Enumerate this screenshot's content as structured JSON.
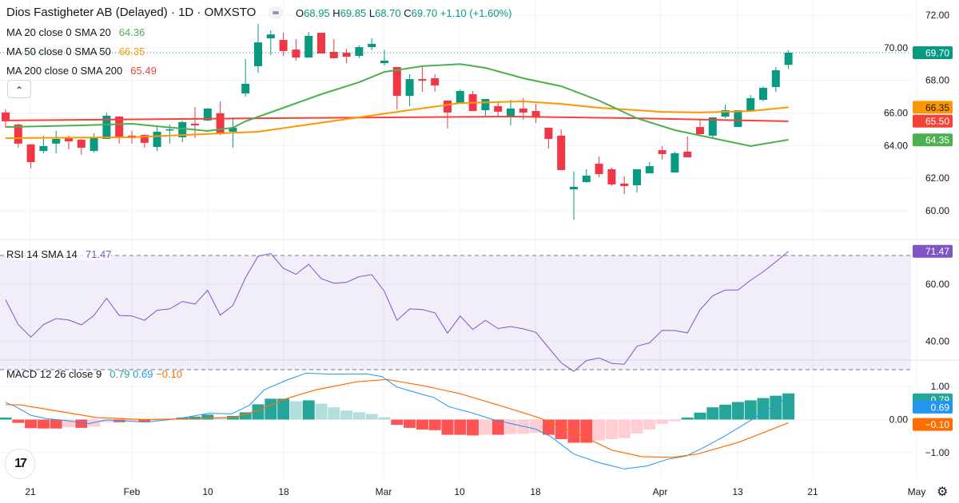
{
  "header": {
    "title": "Dios Fastigheter AB (Delayed) · 1D · OMXSTO",
    "ohlc": {
      "o_label": "O",
      "o": "68.95",
      "h_label": "H",
      "h": "69.85",
      "l_label": "L",
      "l": "68.70",
      "c_label": "C",
      "c": "69.70",
      "change": "+1.10 (+1.60%)"
    }
  },
  "legends": {
    "ma20": {
      "label": "MA 20 close 0 SMA 20",
      "value": "64.36",
      "color": "#4caf50"
    },
    "ma50": {
      "label": "MA 50 close 0 SMA 50",
      "value": "66.35",
      "color": "#ff9800"
    },
    "ma200": {
      "label": "MA 200 close 0 SMA 200",
      "value": "65.49",
      "color": "#f44336"
    },
    "rsi": {
      "label": "RSI 14 SMA 14",
      "value": "71.47",
      "color": "#7e57c2"
    },
    "macd": {
      "label": "MACD 12 26 close 9",
      "hist": "0.79",
      "macd": "0.69",
      "signal": "−0.10"
    }
  },
  "controls": {
    "collapse_icon": "chevron-up-icon",
    "collapse_glyph": "⌃",
    "logo_text": "17",
    "settings_icon": "gear-icon",
    "settings_glyph": "⚙"
  },
  "axes": {
    "price_ticks": [
      "72.00",
      "70.00",
      "68.00",
      "66.00",
      "64.00",
      "62.00",
      "60.00"
    ],
    "rsi_ticks": [
      "60.00",
      "40.00"
    ],
    "macd_ticks": [
      "1.00",
      "0.00",
      "−1.00"
    ],
    "time_ticks": [
      "21",
      "Feb",
      "10",
      "18",
      "Mar",
      "10",
      "18",
      "Apr",
      "13",
      "21",
      "May"
    ],
    "badges": {
      "close": {
        "text": "69.70",
        "color": "#089981"
      },
      "ma50": {
        "text": "66.35",
        "color": "#ff9800"
      },
      "ma200": {
        "text": "65.50",
        "color": "#f44336"
      },
      "ma20": {
        "text": "64.35",
        "color": "#4caf50"
      },
      "rsi": {
        "text": "71.47",
        "color": "#7e57c2"
      },
      "hist": {
        "text": "0.79",
        "color": "#26a69a"
      },
      "macd": {
        "text": "0.69",
        "color": "#2196f3"
      },
      "signal": {
        "text": "−0.10",
        "color": "#ff6d00"
      }
    }
  },
  "chart_data": {
    "type": "candlestick",
    "colors": {
      "up": "#089981",
      "down": "#f23645"
    },
    "price_range": [
      58.5,
      72.5
    ],
    "candles": [
      [
        66.03,
        66.22,
        65.1,
        65.49
      ],
      [
        65.29,
        65.35,
        63.87,
        64.12
      ],
      [
        64.07,
        64.1,
        62.6,
        62.99
      ],
      [
        63.67,
        64.61,
        63.53,
        63.97
      ],
      [
        64.12,
        64.9,
        63.53,
        64.41
      ],
      [
        64.51,
        64.61,
        63.77,
        64.26
      ],
      [
        64.36,
        64.4,
        63.43,
        63.87
      ],
      [
        63.67,
        64.75,
        63.58,
        64.51
      ],
      [
        64.41,
        66.03,
        64.41,
        65.83
      ],
      [
        65.78,
        65.8,
        64.12,
        64.51
      ],
      [
        64.61,
        64.9,
        64.12,
        64.46
      ],
      [
        64.65,
        64.7,
        63.87,
        64.17
      ],
      [
        63.92,
        65.19,
        63.67,
        64.85
      ],
      [
        64.95,
        65.29,
        64.12,
        65.0
      ],
      [
        64.51,
        65.54,
        64.21,
        65.44
      ],
      [
        65.34,
        66.37,
        64.46,
        65.24
      ],
      [
        65.54,
        66.3,
        65.5,
        66.27
      ],
      [
        65.98,
        66.71,
        64.65,
        64.7
      ],
      [
        64.85,
        65.73,
        63.87,
        65.1
      ],
      [
        67.2,
        69.31,
        67.0,
        67.79
      ],
      [
        68.87,
        71.46,
        68.47,
        70.33
      ],
      [
        70.58,
        71.07,
        69.55,
        70.82
      ],
      [
        70.48,
        70.92,
        69.5,
        69.8
      ],
      [
        69.89,
        70.53,
        69.21,
        69.4
      ],
      [
        69.4,
        70.97,
        69.4,
        70.73
      ],
      [
        70.92,
        70.92,
        69.65,
        69.65
      ],
      [
        69.75,
        70.53,
        69.36,
        69.36
      ],
      [
        69.7,
        69.94,
        69.06,
        69.45
      ],
      [
        69.5,
        70.14,
        69.36,
        70.04
      ],
      [
        70.04,
        70.58,
        69.85,
        70.24
      ],
      [
        69.06,
        69.89,
        68.91,
        69.21
      ],
      [
        68.82,
        68.82,
        66.22,
        67.05
      ],
      [
        67.05,
        68.38,
        66.42,
        68.08
      ],
      [
        68.08,
        68.82,
        67.3,
        67.98
      ],
      [
        68.13,
        68.38,
        67.3,
        67.69
      ],
      [
        66.76,
        66.76,
        65.05,
        66.03
      ],
      [
        66.61,
        67.45,
        66.61,
        67.35
      ],
      [
        67.15,
        67.35,
        66.12,
        66.12
      ],
      [
        66.17,
        66.86,
        65.83,
        66.86
      ],
      [
        66.42,
        66.71,
        65.83,
        66.08
      ],
      [
        65.78,
        66.81,
        65.24,
        66.27
      ],
      [
        66.27,
        66.91,
        65.59,
        66.03
      ],
      [
        66.12,
        66.56,
        65.39,
        65.73
      ],
      [
        65.1,
        65.1,
        63.82,
        64.41
      ],
      [
        64.61,
        65.0,
        62.5,
        62.5
      ],
      [
        61.32,
        62.4,
        59.46,
        61.47
      ],
      [
        61.76,
        62.55,
        61.72,
        62.16
      ],
      [
        62.89,
        63.33,
        62.06,
        62.25
      ],
      [
        62.55,
        62.65,
        61.52,
        61.62
      ],
      [
        61.67,
        62.11,
        61.03,
        61.52
      ],
      [
        61.57,
        62.55,
        61.13,
        62.55
      ],
      [
        62.3,
        62.99,
        62.3,
        62.74
      ],
      [
        63.72,
        63.97,
        63.14,
        63.48
      ],
      [
        62.35,
        63.63,
        62.35,
        63.53
      ],
      [
        63.63,
        64.56,
        63.28,
        63.28
      ],
      [
        65.14,
        65.59,
        64.7,
        64.7
      ],
      [
        64.61,
        65.73,
        64.41,
        65.73
      ],
      [
        65.78,
        66.51,
        65.68,
        66.17
      ],
      [
        65.14,
        66.17,
        65.14,
        66.17
      ],
      [
        66.12,
        67.1,
        66.12,
        66.91
      ],
      [
        66.81,
        67.64,
        66.71,
        67.54
      ],
      [
        67.59,
        68.82,
        67.3,
        68.62
      ],
      [
        68.95,
        69.85,
        68.7,
        69.7
      ]
    ],
    "sma20": [
      [
        0,
        65.14
      ],
      [
        6,
        65.24
      ],
      [
        10,
        65.34
      ],
      [
        12,
        65.19
      ],
      [
        16,
        64.9
      ],
      [
        18,
        65.1
      ],
      [
        19,
        65.49
      ],
      [
        22,
        66.32
      ],
      [
        25,
        67.15
      ],
      [
        28,
        67.89
      ],
      [
        30,
        68.52
      ],
      [
        33,
        68.87
      ],
      [
        36,
        69.0
      ],
      [
        38,
        68.77
      ],
      [
        41,
        68.13
      ],
      [
        44,
        67.64
      ],
      [
        47,
        66.76
      ],
      [
        50,
        65.68
      ],
      [
        53,
        64.95
      ],
      [
        56,
        64.46
      ],
      [
        59,
        63.97
      ],
      [
        62,
        64.36
      ]
    ],
    "sma50": [
      [
        0,
        64.46
      ],
      [
        10,
        64.51
      ],
      [
        20,
        64.85
      ],
      [
        31,
        66.07
      ],
      [
        36,
        66.61
      ],
      [
        41,
        66.71
      ],
      [
        44,
        66.56
      ],
      [
        47,
        66.32
      ],
      [
        52,
        66.07
      ],
      [
        55,
        66.03
      ],
      [
        59,
        66.12
      ],
      [
        62,
        66.35
      ]
    ],
    "sma200": [
      [
        0,
        65.54
      ],
      [
        20,
        65.68
      ],
      [
        40,
        65.78
      ],
      [
        50,
        65.68
      ],
      [
        62,
        65.49
      ]
    ],
    "rsi": {
      "range": [
        20,
        80
      ],
      "upper": 70,
      "lower": 30,
      "values": [
        54.5,
        45.8,
        41.4,
        45.8,
        47.9,
        47.4,
        45.7,
        49.0,
        55.0,
        49.0,
        48.8,
        47.3,
        50.8,
        51.3,
        53.9,
        53.0,
        57.8,
        49.1,
        52.5,
        62.2,
        69.8,
        70.7,
        65.5,
        63.4,
        66.9,
        61.9,
        60.3,
        60.6,
        62.6,
        63.3,
        57.4,
        47.3,
        51.3,
        51.1,
        49.9,
        42.8,
        48.8,
        44.1,
        47.3,
        44.4,
        45.1,
        44.3,
        43.1,
        37.7,
        32.4,
        29.4,
        33.2,
        34.1,
        32.2,
        31.9,
        38.2,
        39.4,
        43.8,
        43.7,
        42.9,
        51.0,
        55.9,
        57.9,
        57.9,
        61.3,
        64.3,
        67.8,
        71.47
      ]
    },
    "macd": {
      "hist_colors": {
        "up_strong": "#26a69a",
        "up_weak": "#b2dfdb",
        "down_strong": "#ff5252",
        "down_weak": "#ffcdd2"
      },
      "histogram": [
        0.06,
        -0.1,
        -0.26,
        -0.27,
        -0.27,
        -0.23,
        -0.25,
        -0.21,
        -0.08,
        -0.08,
        -0.06,
        -0.06,
        -0.03,
        -0.02,
        0.06,
        0.09,
        0.15,
        0.06,
        0.11,
        0.22,
        0.46,
        0.63,
        0.63,
        0.55,
        0.58,
        0.48,
        0.37,
        0.27,
        0.22,
        0.17,
        0.07,
        -0.16,
        -0.25,
        -0.3,
        -0.32,
        -0.46,
        -0.46,
        -0.48,
        -0.46,
        -0.46,
        -0.44,
        -0.43,
        -0.4,
        -0.46,
        -0.59,
        -0.7,
        -0.7,
        -0.63,
        -0.59,
        -0.56,
        -0.42,
        -0.3,
        -0.13,
        -0.05,
        0.06,
        0.21,
        0.37,
        0.45,
        0.53,
        0.58,
        0.65,
        0.72,
        0.79
      ],
      "macd_line": [
        [
          0,
          0.52
        ],
        [
          0.8,
          0.39
        ],
        [
          2,
          0.13
        ],
        [
          3.2,
          0.03
        ],
        [
          4.8,
          -0.03
        ],
        [
          6.6,
          -0.12
        ],
        [
          8,
          -0.01
        ],
        [
          11.1,
          -0.08
        ],
        [
          13.7,
          0.03
        ],
        [
          16.1,
          0.19
        ],
        [
          17.9,
          0.17
        ],
        [
          19.3,
          0.43
        ],
        [
          20.5,
          0.9
        ],
        [
          22.2,
          1.18
        ],
        [
          23.8,
          1.4
        ],
        [
          25.8,
          1.37
        ],
        [
          28.6,
          1.38
        ],
        [
          29.8,
          1.3
        ],
        [
          31,
          0.98
        ],
        [
          33,
          0.76
        ],
        [
          33.9,
          0.67
        ],
        [
          35.1,
          0.39
        ],
        [
          36.7,
          0.23
        ],
        [
          38.7,
          -0.01
        ],
        [
          42,
          -0.29
        ],
        [
          43.2,
          -0.52
        ],
        [
          45,
          -1.04
        ],
        [
          47,
          -1.3
        ],
        [
          49,
          -1.49
        ],
        [
          50.8,
          -1.4
        ],
        [
          52.4,
          -1.2
        ],
        [
          53.9,
          -1.1
        ],
        [
          55.3,
          -0.84
        ],
        [
          56.9,
          -0.51
        ],
        [
          58.9,
          -0.05
        ],
        [
          62,
          0.69
        ]
      ],
      "signal_line": [
        [
          0,
          0.45
        ],
        [
          1.2,
          0.44
        ],
        [
          3.6,
          0.29
        ],
        [
          7.2,
          0.06
        ],
        [
          10.9,
          0.0
        ],
        [
          13.7,
          0.02
        ],
        [
          18.2,
          0.07
        ],
        [
          19.9,
          0.27
        ],
        [
          22.2,
          0.63
        ],
        [
          24.6,
          0.9
        ],
        [
          27.8,
          1.14
        ],
        [
          30.2,
          1.21
        ],
        [
          33.1,
          1.02
        ],
        [
          35.9,
          0.79
        ],
        [
          39.1,
          0.43
        ],
        [
          42.3,
          0.05
        ],
        [
          45.6,
          -0.48
        ],
        [
          48,
          -0.92
        ],
        [
          50.4,
          -1.12
        ],
        [
          52.8,
          -1.14
        ],
        [
          54.8,
          -1.04
        ],
        [
          58.1,
          -0.68
        ],
        [
          62,
          -0.1
        ]
      ]
    }
  }
}
